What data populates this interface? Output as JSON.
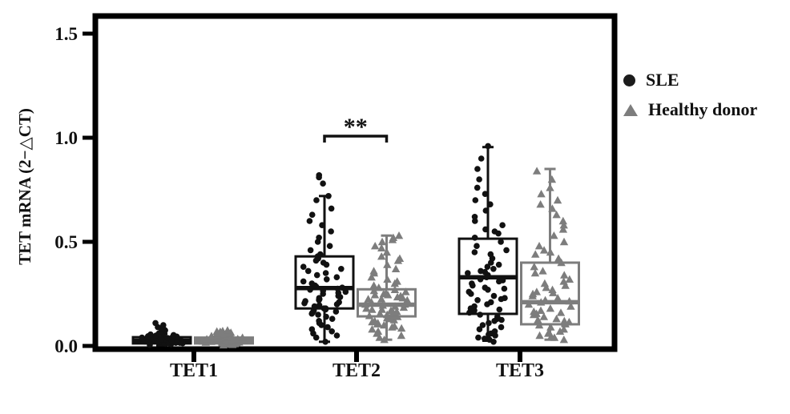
{
  "chart_data": {
    "type": "scatter",
    "subtype": "boxplot-with-jittered-points",
    "title": "",
    "xlabel": "",
    "ylabel": "TET mRNA (2−△CT)",
    "categories": [
      "TET1",
      "TET2",
      "TET3"
    ],
    "y_ticks": [
      "0.0",
      "0.5",
      "1.0",
      "1.5"
    ],
    "ylim": [
      0,
      1.62
    ],
    "grid": false,
    "legend_position": "right-outside",
    "significance": {
      "category": "TET2",
      "label": "**"
    },
    "series": [
      {
        "name": "SLE",
        "marker": "circle",
        "color": "#111111",
        "boxes": [
          {
            "category": "TET1",
            "whisker_low": 0.003,
            "q1": 0.012,
            "median": 0.025,
            "q3": 0.042,
            "whisker_high": 0.058
          },
          {
            "category": "TET2",
            "whisker_low": 0.02,
            "q1": 0.18,
            "median": 0.278,
            "q3": 0.43,
            "whisker_high": 0.72
          },
          {
            "category": "TET3",
            "whisker_low": 0.025,
            "q1": 0.154,
            "median": 0.33,
            "q3": 0.515,
            "whisker_high": 0.955
          }
        ],
        "points": [
          [
            0.005,
            0.008,
            0.01,
            0.01,
            0.012,
            0.013,
            0.015,
            0.015,
            0.016,
            0.018,
            0.018,
            0.02,
            0.02,
            0.021,
            0.022,
            0.022,
            0.024,
            0.025,
            0.025,
            0.026,
            0.028,
            0.028,
            0.03,
            0.03,
            0.03,
            0.032,
            0.033,
            0.035,
            0.035,
            0.036,
            0.038,
            0.04,
            0.04,
            0.042,
            0.044,
            0.045,
            0.047,
            0.05,
            0.052,
            0.055,
            0.058,
            0.06,
            0.065,
            0.07,
            0.075,
            0.08,
            0.085,
            0.09,
            0.1,
            0.11
          ],
          [
            0.02,
            0.04,
            0.05,
            0.06,
            0.07,
            0.08,
            0.09,
            0.1,
            0.11,
            0.12,
            0.13,
            0.14,
            0.15,
            0.155,
            0.16,
            0.165,
            0.17,
            0.175,
            0.18,
            0.18,
            0.19,
            0.195,
            0.2,
            0.205,
            0.21,
            0.215,
            0.22,
            0.225,
            0.23,
            0.235,
            0.24,
            0.25,
            0.255,
            0.26,
            0.265,
            0.27,
            0.275,
            0.28,
            0.285,
            0.29,
            0.3,
            0.31,
            0.32,
            0.33,
            0.34,
            0.35,
            0.36,
            0.37,
            0.38,
            0.39,
            0.4,
            0.41,
            0.42,
            0.43,
            0.44,
            0.46,
            0.48,
            0.5,
            0.52,
            0.55,
            0.58,
            0.6,
            0.63,
            0.66,
            0.7,
            0.72,
            0.78,
            0.81,
            0.82
          ],
          [
            0.02,
            0.03,
            0.035,
            0.04,
            0.05,
            0.055,
            0.06,
            0.07,
            0.08,
            0.09,
            0.1,
            0.11,
            0.12,
            0.125,
            0.13,
            0.14,
            0.15,
            0.16,
            0.17,
            0.175,
            0.18,
            0.19,
            0.2,
            0.21,
            0.22,
            0.225,
            0.23,
            0.24,
            0.25,
            0.26,
            0.27,
            0.275,
            0.28,
            0.29,
            0.3,
            0.31,
            0.315,
            0.32,
            0.33,
            0.34,
            0.35,
            0.355,
            0.36,
            0.37,
            0.38,
            0.39,
            0.4,
            0.42,
            0.44,
            0.45,
            0.46,
            0.48,
            0.5,
            0.52,
            0.54,
            0.55,
            0.56,
            0.58,
            0.6,
            0.62,
            0.65,
            0.68,
            0.7,
            0.73,
            0.76,
            0.8,
            0.85,
            0.9,
            0.96
          ]
        ]
      },
      {
        "name": "Healthy donor",
        "marker": "triangle",
        "color": "#7d7d7d",
        "boxes": [
          {
            "category": "TET1",
            "whisker_low": 0.003,
            "q1": 0.012,
            "median": 0.024,
            "q3": 0.04,
            "whisker_high": 0.052
          },
          {
            "category": "TET2",
            "whisker_low": 0.03,
            "q1": 0.142,
            "median": 0.198,
            "q3": 0.272,
            "whisker_high": 0.53
          },
          {
            "category": "TET3",
            "whisker_low": 0.03,
            "q1": 0.104,
            "median": 0.21,
            "q3": 0.4,
            "whisker_high": 0.85
          }
        ],
        "points": [
          [
            0.004,
            0.006,
            0.008,
            0.01,
            0.01,
            0.012,
            0.013,
            0.015,
            0.015,
            0.017,
            0.018,
            0.02,
            0.02,
            0.021,
            0.022,
            0.023,
            0.024,
            0.025,
            0.025,
            0.027,
            0.028,
            0.03,
            0.03,
            0.031,
            0.032,
            0.033,
            0.034,
            0.035,
            0.036,
            0.038,
            0.04,
            0.04,
            0.042,
            0.043,
            0.045,
            0.046,
            0.048,
            0.05,
            0.05,
            0.052,
            0.055,
            0.057,
            0.06,
            0.062,
            0.064,
            0.066,
            0.068,
            0.07,
            0.072,
            0.075
          ],
          [
            0.03,
            0.04,
            0.05,
            0.06,
            0.07,
            0.08,
            0.085,
            0.09,
            0.095,
            0.1,
            0.105,
            0.11,
            0.115,
            0.12,
            0.125,
            0.13,
            0.135,
            0.14,
            0.145,
            0.15,
            0.155,
            0.155,
            0.16,
            0.165,
            0.17,
            0.175,
            0.175,
            0.18,
            0.185,
            0.19,
            0.195,
            0.2,
            0.2,
            0.205,
            0.21,
            0.215,
            0.22,
            0.225,
            0.225,
            0.23,
            0.235,
            0.24,
            0.245,
            0.245,
            0.25,
            0.255,
            0.26,
            0.265,
            0.27,
            0.28,
            0.29,
            0.3,
            0.31,
            0.32,
            0.33,
            0.35,
            0.36,
            0.37,
            0.39,
            0.41,
            0.42,
            0.43,
            0.45,
            0.47,
            0.48,
            0.5,
            0.51,
            0.52,
            0.53
          ],
          [
            0.03,
            0.04,
            0.045,
            0.05,
            0.06,
            0.07,
            0.08,
            0.09,
            0.1,
            0.105,
            0.11,
            0.115,
            0.12,
            0.125,
            0.13,
            0.14,
            0.15,
            0.155,
            0.16,
            0.165,
            0.17,
            0.18,
            0.19,
            0.2,
            0.21,
            0.215,
            0.22,
            0.23,
            0.24,
            0.25,
            0.255,
            0.26,
            0.27,
            0.28,
            0.29,
            0.3,
            0.31,
            0.32,
            0.34,
            0.35,
            0.36,
            0.38,
            0.4,
            0.42,
            0.44,
            0.45,
            0.46,
            0.48,
            0.5,
            0.53,
            0.56,
            0.58,
            0.6,
            0.63,
            0.66,
            0.68,
            0.7,
            0.73,
            0.76,
            0.8,
            0.84
          ]
        ]
      }
    ]
  },
  "legend": {
    "items": [
      {
        "label": "SLE",
        "marker": "circle-icon",
        "color": "#1c1c1c"
      },
      {
        "label": "Healthy donor",
        "marker": "triangle-icon",
        "color": "#7d7d7d"
      }
    ]
  }
}
